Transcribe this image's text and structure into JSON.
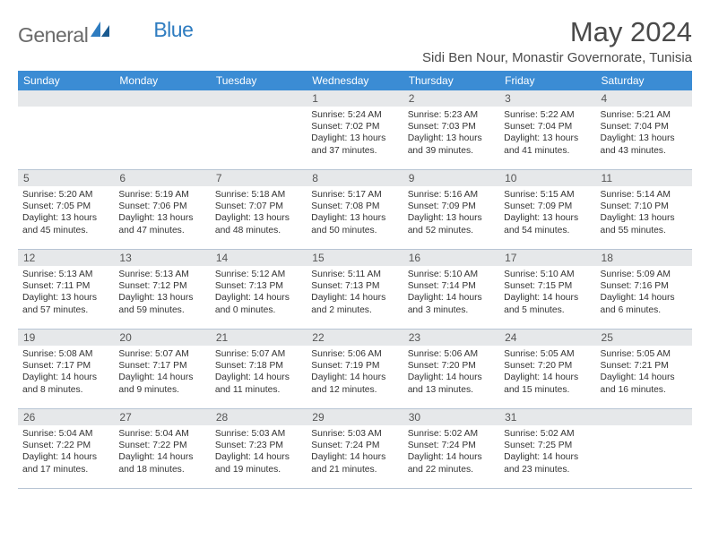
{
  "brand": {
    "part1": "General",
    "part2": "Blue"
  },
  "title": "May 2024",
  "location": "Sidi Ben Nour, Monastir Governorate, Tunisia",
  "colors": {
    "header_bg": "#3b8cd4",
    "header_text": "#ffffff",
    "daynum_bg": "#e6e8ea",
    "border": "#b8c5d4",
    "title_text": "#4a4a4a",
    "logo_gray": "#6a6a6a",
    "logo_blue": "#2e7cc0"
  },
  "dayNames": [
    "Sunday",
    "Monday",
    "Tuesday",
    "Wednesday",
    "Thursday",
    "Friday",
    "Saturday"
  ],
  "weeks": [
    [
      {
        "n": "",
        "t": ""
      },
      {
        "n": "",
        "t": ""
      },
      {
        "n": "",
        "t": ""
      },
      {
        "n": "1",
        "t": "Sunrise: 5:24 AM\nSunset: 7:02 PM\nDaylight: 13 hours and 37 minutes."
      },
      {
        "n": "2",
        "t": "Sunrise: 5:23 AM\nSunset: 7:03 PM\nDaylight: 13 hours and 39 minutes."
      },
      {
        "n": "3",
        "t": "Sunrise: 5:22 AM\nSunset: 7:04 PM\nDaylight: 13 hours and 41 minutes."
      },
      {
        "n": "4",
        "t": "Sunrise: 5:21 AM\nSunset: 7:04 PM\nDaylight: 13 hours and 43 minutes."
      }
    ],
    [
      {
        "n": "5",
        "t": "Sunrise: 5:20 AM\nSunset: 7:05 PM\nDaylight: 13 hours and 45 minutes."
      },
      {
        "n": "6",
        "t": "Sunrise: 5:19 AM\nSunset: 7:06 PM\nDaylight: 13 hours and 47 minutes."
      },
      {
        "n": "7",
        "t": "Sunrise: 5:18 AM\nSunset: 7:07 PM\nDaylight: 13 hours and 48 minutes."
      },
      {
        "n": "8",
        "t": "Sunrise: 5:17 AM\nSunset: 7:08 PM\nDaylight: 13 hours and 50 minutes."
      },
      {
        "n": "9",
        "t": "Sunrise: 5:16 AM\nSunset: 7:09 PM\nDaylight: 13 hours and 52 minutes."
      },
      {
        "n": "10",
        "t": "Sunrise: 5:15 AM\nSunset: 7:09 PM\nDaylight: 13 hours and 54 minutes."
      },
      {
        "n": "11",
        "t": "Sunrise: 5:14 AM\nSunset: 7:10 PM\nDaylight: 13 hours and 55 minutes."
      }
    ],
    [
      {
        "n": "12",
        "t": "Sunrise: 5:13 AM\nSunset: 7:11 PM\nDaylight: 13 hours and 57 minutes."
      },
      {
        "n": "13",
        "t": "Sunrise: 5:13 AM\nSunset: 7:12 PM\nDaylight: 13 hours and 59 minutes."
      },
      {
        "n": "14",
        "t": "Sunrise: 5:12 AM\nSunset: 7:13 PM\nDaylight: 14 hours and 0 minutes."
      },
      {
        "n": "15",
        "t": "Sunrise: 5:11 AM\nSunset: 7:13 PM\nDaylight: 14 hours and 2 minutes."
      },
      {
        "n": "16",
        "t": "Sunrise: 5:10 AM\nSunset: 7:14 PM\nDaylight: 14 hours and 3 minutes."
      },
      {
        "n": "17",
        "t": "Sunrise: 5:10 AM\nSunset: 7:15 PM\nDaylight: 14 hours and 5 minutes."
      },
      {
        "n": "18",
        "t": "Sunrise: 5:09 AM\nSunset: 7:16 PM\nDaylight: 14 hours and 6 minutes."
      }
    ],
    [
      {
        "n": "19",
        "t": "Sunrise: 5:08 AM\nSunset: 7:17 PM\nDaylight: 14 hours and 8 minutes."
      },
      {
        "n": "20",
        "t": "Sunrise: 5:07 AM\nSunset: 7:17 PM\nDaylight: 14 hours and 9 minutes."
      },
      {
        "n": "21",
        "t": "Sunrise: 5:07 AM\nSunset: 7:18 PM\nDaylight: 14 hours and 11 minutes."
      },
      {
        "n": "22",
        "t": "Sunrise: 5:06 AM\nSunset: 7:19 PM\nDaylight: 14 hours and 12 minutes."
      },
      {
        "n": "23",
        "t": "Sunrise: 5:06 AM\nSunset: 7:20 PM\nDaylight: 14 hours and 13 minutes."
      },
      {
        "n": "24",
        "t": "Sunrise: 5:05 AM\nSunset: 7:20 PM\nDaylight: 14 hours and 15 minutes."
      },
      {
        "n": "25",
        "t": "Sunrise: 5:05 AM\nSunset: 7:21 PM\nDaylight: 14 hours and 16 minutes."
      }
    ],
    [
      {
        "n": "26",
        "t": "Sunrise: 5:04 AM\nSunset: 7:22 PM\nDaylight: 14 hours and 17 minutes."
      },
      {
        "n": "27",
        "t": "Sunrise: 5:04 AM\nSunset: 7:22 PM\nDaylight: 14 hours and 18 minutes."
      },
      {
        "n": "28",
        "t": "Sunrise: 5:03 AM\nSunset: 7:23 PM\nDaylight: 14 hours and 19 minutes."
      },
      {
        "n": "29",
        "t": "Sunrise: 5:03 AM\nSunset: 7:24 PM\nDaylight: 14 hours and 21 minutes."
      },
      {
        "n": "30",
        "t": "Sunrise: 5:02 AM\nSunset: 7:24 PM\nDaylight: 14 hours and 22 minutes."
      },
      {
        "n": "31",
        "t": "Sunrise: 5:02 AM\nSunset: 7:25 PM\nDaylight: 14 hours and 23 minutes."
      },
      {
        "n": "",
        "t": ""
      }
    ]
  ]
}
